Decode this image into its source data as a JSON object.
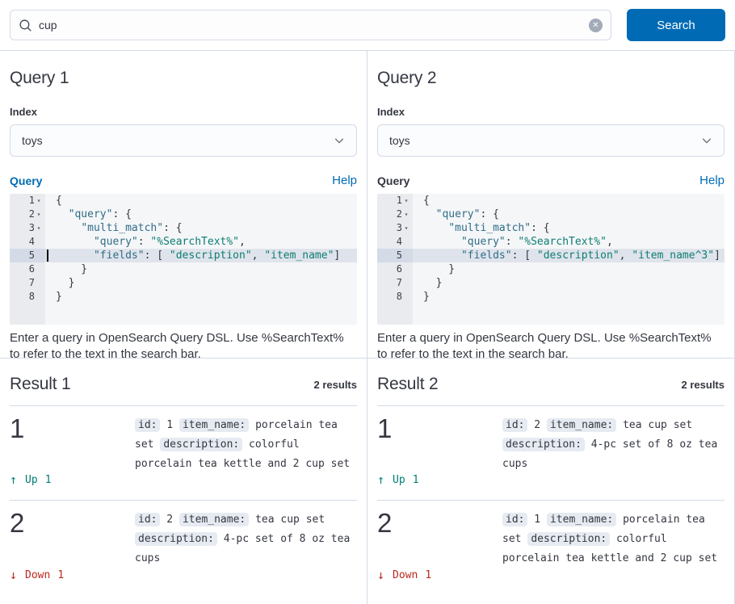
{
  "colors": {
    "accent": "#006BB4",
    "success": "#017D73",
    "danger": "#BD271E",
    "text": "#343741",
    "border": "#D3DAE6",
    "chip_bg": "#E6EBF2",
    "editor_bg": "#F5F6F8",
    "gutter_bg": "#E9EBEF",
    "active_line_bg": "#DFE3EB",
    "active_gutter_bg": "#D4DBE6",
    "code_key": "#2F6D87",
    "code_string": "#0C7D72",
    "code_punct": "#343741"
  },
  "icons": {
    "search": "magnifier",
    "clear": "✕",
    "chevron_down": "chevron",
    "fold": "▾",
    "up": "↑",
    "down": "↓"
  },
  "search": {
    "value": "cup",
    "button_label": "Search"
  },
  "query_panels": [
    {
      "title": "Query 1",
      "index_label": "Index",
      "index_value": "toys",
      "query_label": "Query",
      "query_label_active": true,
      "help_label": "Help",
      "hint": "Enter a query in OpenSearch Query DSL. Use %SearchText% to refer to the text in the search bar.",
      "code": {
        "active_line": 5,
        "cursor_line": 5,
        "lines": [
          {
            "n": 1,
            "fold": true,
            "tokens": [
              [
                "p",
                "{"
              ]
            ]
          },
          {
            "n": 2,
            "fold": true,
            "tokens": [
              [
                "p",
                "  "
              ],
              [
                "k",
                "\"query\""
              ],
              [
                "p",
                ": {"
              ]
            ]
          },
          {
            "n": 3,
            "fold": true,
            "tokens": [
              [
                "p",
                "    "
              ],
              [
                "k",
                "\"multi_match\""
              ],
              [
                "p",
                ": {"
              ]
            ]
          },
          {
            "n": 4,
            "fold": false,
            "tokens": [
              [
                "p",
                "      "
              ],
              [
                "k",
                "\"query\""
              ],
              [
                "p",
                ": "
              ],
              [
                "s",
                "\"%SearchText%\""
              ],
              [
                "p",
                ","
              ]
            ]
          },
          {
            "n": 5,
            "fold": false,
            "tokens": [
              [
                "p",
                "      "
              ],
              [
                "k",
                "\"fields\""
              ],
              [
                "p",
                ": [ "
              ],
              [
                "s",
                "\"description\""
              ],
              [
                "p",
                ", "
              ],
              [
                "s",
                "\"item_name\""
              ],
              [
                "p",
                "]"
              ]
            ]
          },
          {
            "n": 6,
            "fold": false,
            "tokens": [
              [
                "p",
                "    }"
              ]
            ]
          },
          {
            "n": 7,
            "fold": false,
            "tokens": [
              [
                "p",
                "  }"
              ]
            ]
          },
          {
            "n": 8,
            "fold": false,
            "tokens": [
              [
                "p",
                "}"
              ]
            ]
          }
        ]
      }
    },
    {
      "title": "Query 2",
      "index_label": "Index",
      "index_value": "toys",
      "query_label": "Query",
      "query_label_active": false,
      "help_label": "Help",
      "hint": "Enter a query in OpenSearch Query DSL. Use %SearchText% to refer to the text in the search bar.",
      "code": {
        "active_line": 5,
        "cursor_line": null,
        "lines": [
          {
            "n": 1,
            "fold": true,
            "tokens": [
              [
                "p",
                "{"
              ]
            ]
          },
          {
            "n": 2,
            "fold": true,
            "tokens": [
              [
                "p",
                "  "
              ],
              [
                "k",
                "\"query\""
              ],
              [
                "p",
                ": {"
              ]
            ]
          },
          {
            "n": 3,
            "fold": true,
            "tokens": [
              [
                "p",
                "    "
              ],
              [
                "k",
                "\"multi_match\""
              ],
              [
                "p",
                ": {"
              ]
            ]
          },
          {
            "n": 4,
            "fold": false,
            "tokens": [
              [
                "p",
                "      "
              ],
              [
                "k",
                "\"query\""
              ],
              [
                "p",
                ": "
              ],
              [
                "s",
                "\"%SearchText%\""
              ],
              [
                "p",
                ","
              ]
            ]
          },
          {
            "n": 5,
            "fold": false,
            "tokens": [
              [
                "p",
                "      "
              ],
              [
                "k",
                "\"fields\""
              ],
              [
                "p",
                ": [ "
              ],
              [
                "s",
                "\"description\""
              ],
              [
                "p",
                ", "
              ],
              [
                "s",
                "\"item_name^3\""
              ],
              [
                "p",
                "]"
              ]
            ]
          },
          {
            "n": 6,
            "fold": false,
            "tokens": [
              [
                "p",
                "    }"
              ]
            ]
          },
          {
            "n": 7,
            "fold": false,
            "tokens": [
              [
                "p",
                "  }"
              ]
            ]
          },
          {
            "n": 8,
            "fold": false,
            "tokens": [
              [
                "p",
                "}"
              ]
            ]
          }
        ]
      }
    }
  ],
  "result_panels": [
    {
      "title": "Result 1",
      "count_label": "2 results",
      "rows": [
        {
          "rank": "1",
          "direction": "up",
          "change_label": "Up",
          "change_count": "1",
          "fields": [
            [
              "id:",
              "1"
            ],
            [
              "item_name:",
              "porcelain tea set"
            ],
            [
              "description:",
              "colorful porcelain tea kettle and 2 cup set"
            ]
          ]
        },
        {
          "rank": "2",
          "direction": "down",
          "change_label": "Down",
          "change_count": "1",
          "fields": [
            [
              "id:",
              "2"
            ],
            [
              "item_name:",
              "tea cup set"
            ],
            [
              "description:",
              "4-pc set of 8 oz tea cups"
            ]
          ]
        }
      ]
    },
    {
      "title": "Result 2",
      "count_label": "2 results",
      "rows": [
        {
          "rank": "1",
          "direction": "up",
          "change_label": "Up",
          "change_count": "1",
          "fields": [
            [
              "id:",
              "2"
            ],
            [
              "item_name:",
              "tea cup set"
            ],
            [
              "description:",
              "4-pc set of 8 oz tea cups"
            ]
          ]
        },
        {
          "rank": "2",
          "direction": "down",
          "change_label": "Down",
          "change_count": "1",
          "fields": [
            [
              "id:",
              "1"
            ],
            [
              "item_name:",
              "porcelain tea set"
            ],
            [
              "description:",
              "colorful porcelain tea kettle and 2 cup set"
            ]
          ]
        }
      ]
    }
  ]
}
